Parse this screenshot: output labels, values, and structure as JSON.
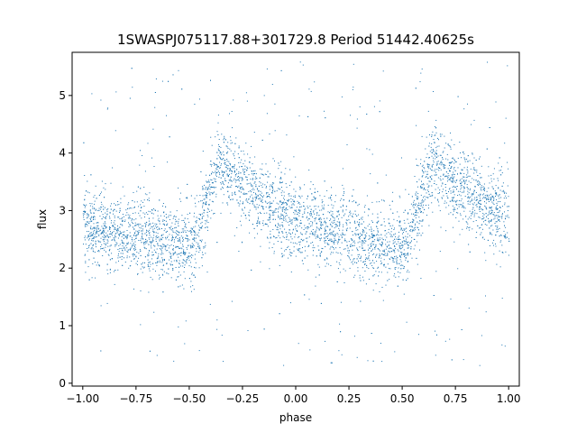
{
  "chart_data": {
    "type": "scatter",
    "title": "1SWASPJ075117.88+301729.8 Period 51442.40625s",
    "xlabel": "phase",
    "ylabel": "flux",
    "xlim": [
      -1.05,
      1.05
    ],
    "ylim": [
      -0.05,
      5.75
    ],
    "xticks": [
      -1.0,
      -0.75,
      -0.5,
      -0.25,
      0.0,
      0.25,
      0.5,
      0.75,
      1.0
    ],
    "xtick_labels": [
      "−1.00",
      "−0.75",
      "−0.50",
      "−0.25",
      "0.00",
      "0.25",
      "0.50",
      "0.75",
      "1.00"
    ],
    "yticks": [
      0,
      1,
      2,
      3,
      4,
      5
    ],
    "ytick_labels": [
      "0",
      "1",
      "2",
      "3",
      "4",
      "5"
    ],
    "grid": false,
    "legend": "none",
    "marker_color": "#1f77b4",
    "series": [
      {
        "phase_range": [
          -1.0,
          1.0
        ],
        "light_curve_profile": [
          {
            "phase": -1.0,
            "flux": 2.7
          },
          {
            "phase": -0.75,
            "flux": 2.6
          },
          {
            "phase": -0.55,
            "flux": 2.4
          },
          {
            "phase": -0.48,
            "flux": 2.35
          },
          {
            "phase": -0.4,
            "flux": 3.4
          },
          {
            "phase": -0.36,
            "flux": 3.85
          },
          {
            "phase": -0.25,
            "flux": 3.45
          },
          {
            "phase": -0.1,
            "flux": 3.05
          },
          {
            "phase": 0.0,
            "flux": 2.8
          },
          {
            "phase": 0.25,
            "flux": 2.6
          },
          {
            "phase": 0.45,
            "flux": 2.4
          },
          {
            "phase": 0.52,
            "flux": 2.35
          },
          {
            "phase": 0.6,
            "flux": 3.4
          },
          {
            "phase": 0.64,
            "flux": 3.85
          },
          {
            "phase": 0.75,
            "flux": 3.45
          },
          {
            "phase": 0.9,
            "flux": 3.05
          },
          {
            "phase": 1.0,
            "flux": 2.8
          }
        ],
        "scatter_spread": 0.33
      }
    ]
  }
}
